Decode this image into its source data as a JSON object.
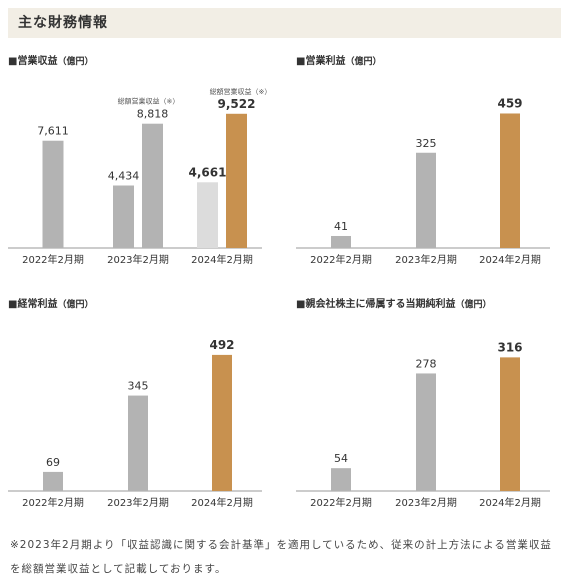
{
  "header": {
    "title": "主な財務情報"
  },
  "colors": {
    "past": "#b3b3b3",
    "current": "#c8914f",
    "current_light": "#dcdcdc",
    "axis": "#999999"
  },
  "chart_data": [
    {
      "type": "bar",
      "title": "営業収益",
      "unit": "（億円）",
      "categories": [
        "2022年2月期",
        "2023年2月期",
        "2024年2月期"
      ],
      "series": [
        {
          "values": [
            7611,
            4434,
            4661
          ]
        },
        {
          "name": "総額営業収益（※）",
          "values": [
            null,
            8818,
            9522
          ]
        }
      ],
      "value_labels": [
        [
          "7,611",
          "4,434",
          "4,661"
        ],
        [
          null,
          "8,818",
          "9,522"
        ]
      ],
      "ylim": [
        0,
        10500
      ]
    },
    {
      "type": "bar",
      "title": "営業利益",
      "unit": "（億円）",
      "categories": [
        "2022年2月期",
        "2023年2月期",
        "2024年2月期"
      ],
      "values": [
        41,
        325,
        459
      ],
      "value_labels": [
        "41",
        "325",
        "459"
      ],
      "ylim": [
        0,
        505
      ]
    },
    {
      "type": "bar",
      "title": "経常利益",
      "unit": "（億円）",
      "categories": [
        "2022年2月期",
        "2023年2月期",
        "2024年2月期"
      ],
      "values": [
        69,
        345,
        492
      ],
      "value_labels": [
        "69",
        "345",
        "492"
      ],
      "ylim": [
        0,
        535
      ]
    },
    {
      "type": "bar",
      "title": "親会社株主に帰属する当期純利益",
      "unit": "（億円）",
      "categories": [
        "2022年2月期",
        "2023年2月期",
        "2024年2月期"
      ],
      "values": [
        54,
        278,
        316
      ],
      "value_labels": [
        "54",
        "278",
        "316"
      ],
      "ylim": [
        0,
        350
      ]
    }
  ],
  "note": "※2023年2月期より「収益認識に関する会計基準」を適用しているため、従来の計上方法による営業収益を総額営業収益として記載しております。"
}
